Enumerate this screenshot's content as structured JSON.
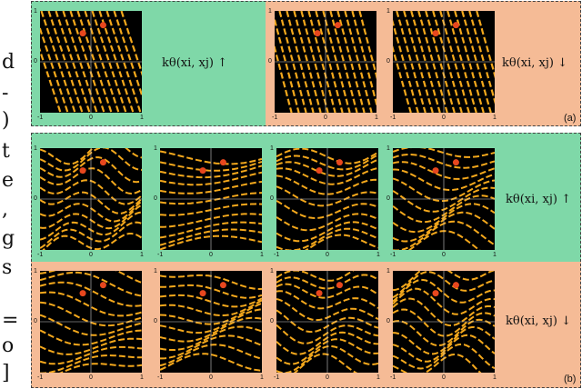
{
  "margin_text": [
    "d",
    "-",
    ")",
    "t",
    "e",
    ",",
    "g",
    "s",
    "=",
    "o",
    "]"
  ],
  "panel_a": {
    "tag": "(a)",
    "label_up": "kθ(xi, xj) ↑",
    "label_down": "kθ(xi, xj) ↓"
  },
  "panel_b": {
    "tag": "(b)",
    "label_up": "kθ(xi, xj) ↑",
    "label_down": "kθ(xi, xj) ↓"
  },
  "tick_labels": {
    "neg": "-1",
    "zero": "0",
    "pos": "1"
  },
  "colors": {
    "green": "#7fd8a8",
    "orange": "#f5bb96",
    "field": "#000000",
    "stroke": "#f4a81c",
    "point": "#e8471e"
  }
}
